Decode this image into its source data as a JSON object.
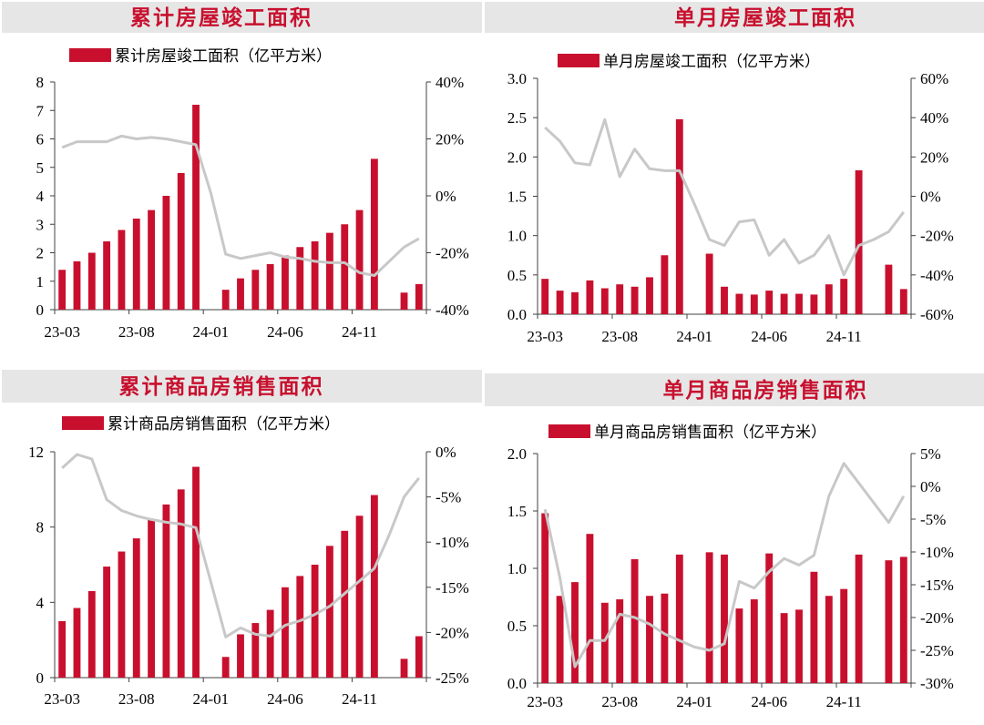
{
  "colors": {
    "bar": "#c8102e",
    "line": "#c8c8c8",
    "title": "#c8102e",
    "header_bg": "#e6e6e6",
    "axis": "#404040"
  },
  "chart_data": [
    {
      "type": "bar",
      "title": "累计房屋竣工面积",
      "legend": "累计房屋竣工面积（亿平方米）",
      "x_tick_labels": [
        "23-03",
        "23-08",
        "24-01",
        "24-06",
        "24-11"
      ],
      "y_left_ticks": [
        "0",
        "1",
        "2",
        "3",
        "4",
        "5",
        "6",
        "7",
        "8"
      ],
      "y_right_ticks": [
        "-40%",
        "-20%",
        "0%",
        "20%",
        "40%"
      ],
      "ylim_left": [
        0,
        8
      ],
      "ylim_right": [
        -40,
        40
      ],
      "bars": [
        1.4,
        1.7,
        2.0,
        2.4,
        2.8,
        3.2,
        3.5,
        4.0,
        4.8,
        7.2,
        null,
        0.7,
        1.1,
        1.4,
        1.6,
        1.9,
        2.2,
        2.4,
        2.7,
        3.0,
        3.5,
        5.3,
        null,
        0.6,
        0.9
      ],
      "line": [
        17,
        19,
        19,
        19,
        21,
        20,
        20.5,
        20,
        19,
        18,
        1,
        -20.5,
        -22,
        -21,
        -20,
        -21.5,
        -22,
        -23,
        -23.5,
        -23.5,
        -27,
        -28,
        -23,
        -18,
        -15
      ]
    },
    {
      "type": "bar",
      "title": "单月房屋竣工面积",
      "legend": "单月房屋竣工面积（亿平方米）",
      "x_tick_labels": [
        "23-03",
        "23-08",
        "24-01",
        "24-06",
        "24-11"
      ],
      "y_left_ticks": [
        "0.0",
        "0.5",
        "1.0",
        "1.5",
        "2.0",
        "2.5",
        "3.0"
      ],
      "y_right_ticks": [
        "-60%",
        "-40%",
        "-20%",
        "0%",
        "20%",
        "40%",
        "60%"
      ],
      "ylim_left": [
        0,
        3
      ],
      "ylim_right": [
        -60,
        60
      ],
      "bars": [
        0.45,
        0.3,
        0.28,
        0.43,
        0.33,
        0.38,
        0.35,
        0.47,
        0.75,
        2.48,
        null,
        0.77,
        0.35,
        0.26,
        0.25,
        0.3,
        0.26,
        0.26,
        0.25,
        0.38,
        0.45,
        1.83,
        null,
        0.63,
        0.32
      ],
      "line": [
        35,
        28,
        17,
        16,
        39,
        10,
        24,
        14,
        13,
        13,
        -4,
        -22,
        -25,
        -13,
        -12,
        -30,
        -22,
        -34,
        -30,
        -20,
        -40,
        -25,
        -22,
        -18,
        -8
      ]
    },
    {
      "type": "bar",
      "title": "累计商品房销售面积",
      "legend": "累计商品房销售面积（亿平方米）",
      "x_tick_labels": [
        "23-03",
        "23-08",
        "24-01",
        "24-06",
        "24-11"
      ],
      "y_left_ticks": [
        "0",
        "4",
        "8",
        "12"
      ],
      "y_right_ticks": [
        "-25%",
        "-20%",
        "-15%",
        "-10%",
        "-5%",
        "0%"
      ],
      "ylim_left": [
        0,
        12
      ],
      "ylim_right": [
        -25,
        0
      ],
      "bars": [
        3.0,
        3.7,
        4.6,
        5.9,
        6.7,
        7.4,
        8.4,
        9.2,
        10.0,
        11.2,
        null,
        1.1,
        2.3,
        2.9,
        3.6,
        4.8,
        5.4,
        6.0,
        7.0,
        7.8,
        8.6,
        9.7,
        null,
        1.0,
        2.2
      ],
      "line": [
        -1.8,
        -0.3,
        -0.8,
        -5.3,
        -6.5,
        -7.1,
        -7.5,
        -7.8,
        -8.0,
        -8.4,
        -14.4,
        -20.5,
        -19.5,
        -20.2,
        -20.4,
        -19.2,
        -18.7,
        -18.0,
        -17.1,
        -15.7,
        -14.3,
        -12.9,
        -9.2,
        -5.0,
        -2.9
      ]
    },
    {
      "type": "bar",
      "title": "单月商品房销售面积",
      "legend": "单月商品房销售面积（亿平方米）",
      "x_tick_labels": [
        "23-03",
        "23-08",
        "24-01",
        "24-06",
        "24-11"
      ],
      "y_left_ticks": [
        "0.0",
        "0.5",
        "1.0",
        "1.5",
        "2.0"
      ],
      "y_right_ticks": [
        "-30%",
        "-25%",
        "-20%",
        "-15%",
        "-10%",
        "-5%",
        "0%",
        "5%"
      ],
      "ylim_left": [
        0,
        2
      ],
      "ylim_right": [
        -30,
        5
      ],
      "bars": [
        1.48,
        0.76,
        0.88,
        1.3,
        0.7,
        0.73,
        1.08,
        0.76,
        0.78,
        1.12,
        null,
        1.14,
        1.12,
        0.65,
        0.73,
        1.13,
        0.61,
        0.64,
        0.97,
        0.76,
        0.82,
        1.12,
        null,
        1.07,
        1.1
      ],
      "line": [
        -3.5,
        -14,
        -27.5,
        -23.5,
        -23.5,
        -19.5,
        -20,
        -21,
        -22.5,
        -23.5,
        -24.5,
        -25,
        -24,
        -14.5,
        -15.5,
        -13,
        -11,
        -12,
        -10.5,
        -1.5,
        3.5,
        0.5,
        -2.5,
        -5.5,
        -1.5
      ]
    }
  ]
}
